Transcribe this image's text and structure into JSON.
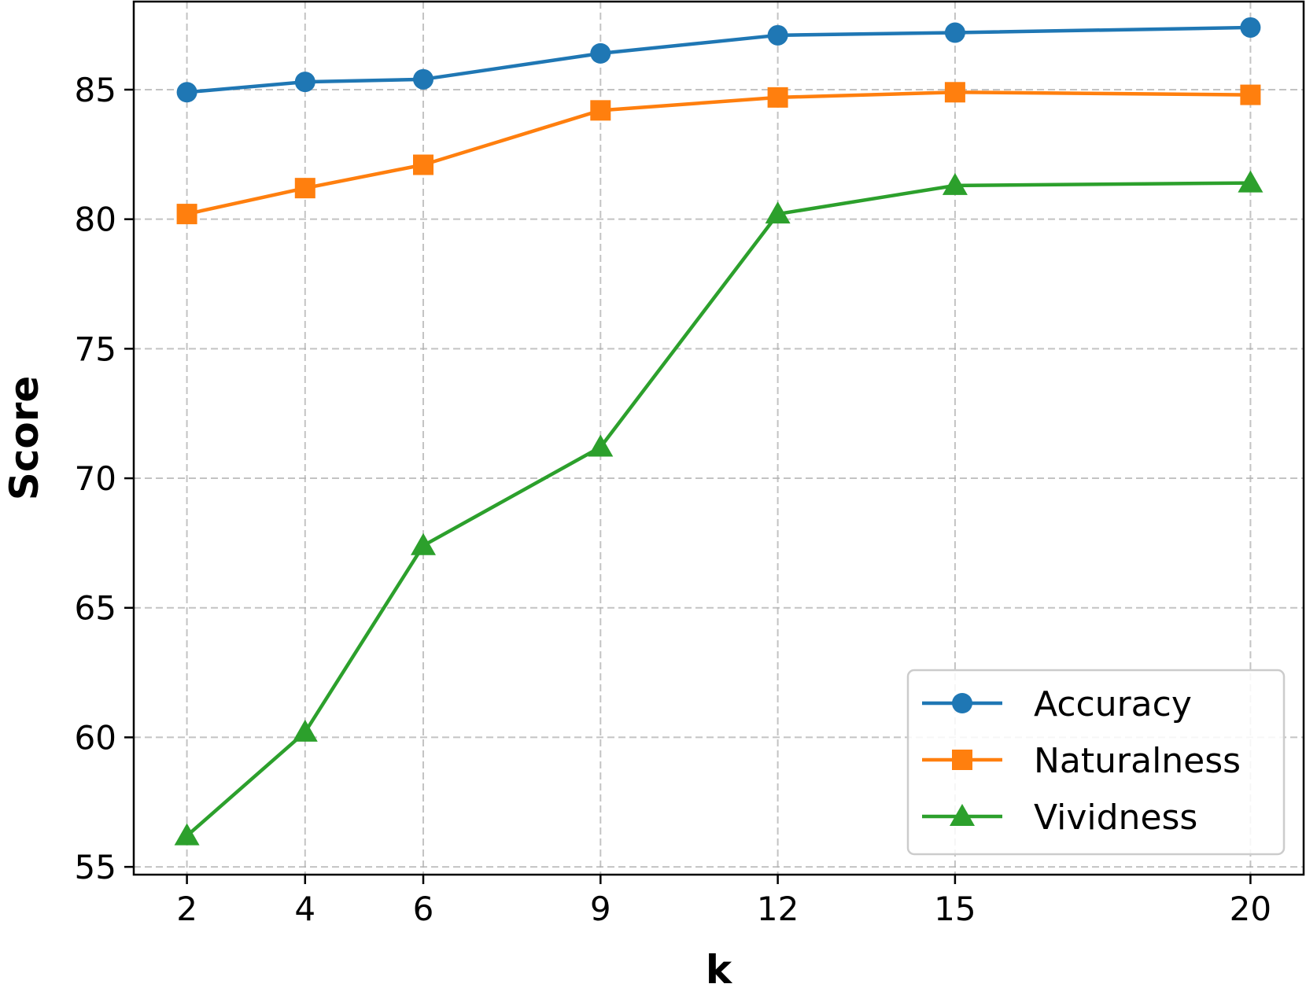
{
  "chart_data": {
    "type": "line",
    "title": "",
    "xlabel": "k",
    "ylabel": "Score",
    "x": [
      2,
      4,
      6,
      9,
      12,
      15,
      20
    ],
    "xlim": [
      1.1,
      20.9
    ],
    "ylim": [
      54.7,
      88.4
    ],
    "xticks": [
      2,
      4,
      6,
      9,
      12,
      15,
      20
    ],
    "yticks": [
      55,
      60,
      65,
      70,
      75,
      80,
      85
    ],
    "grid": true,
    "legend_position": "lower-right",
    "series": [
      {
        "name": "Accuracy",
        "marker": "circle",
        "color": "#1f77b4",
        "values": [
          84.9,
          85.3,
          85.4,
          86.4,
          87.1,
          87.2,
          87.4
        ]
      },
      {
        "name": "Naturalness",
        "marker": "square",
        "color": "#ff7f0e",
        "values": [
          80.2,
          81.2,
          82.1,
          84.2,
          84.7,
          84.9,
          84.8
        ]
      },
      {
        "name": "Vividness",
        "marker": "triangle",
        "color": "#2ca02c",
        "values": [
          56.2,
          60.2,
          67.4,
          71.2,
          80.2,
          81.3,
          81.4
        ]
      }
    ]
  }
}
